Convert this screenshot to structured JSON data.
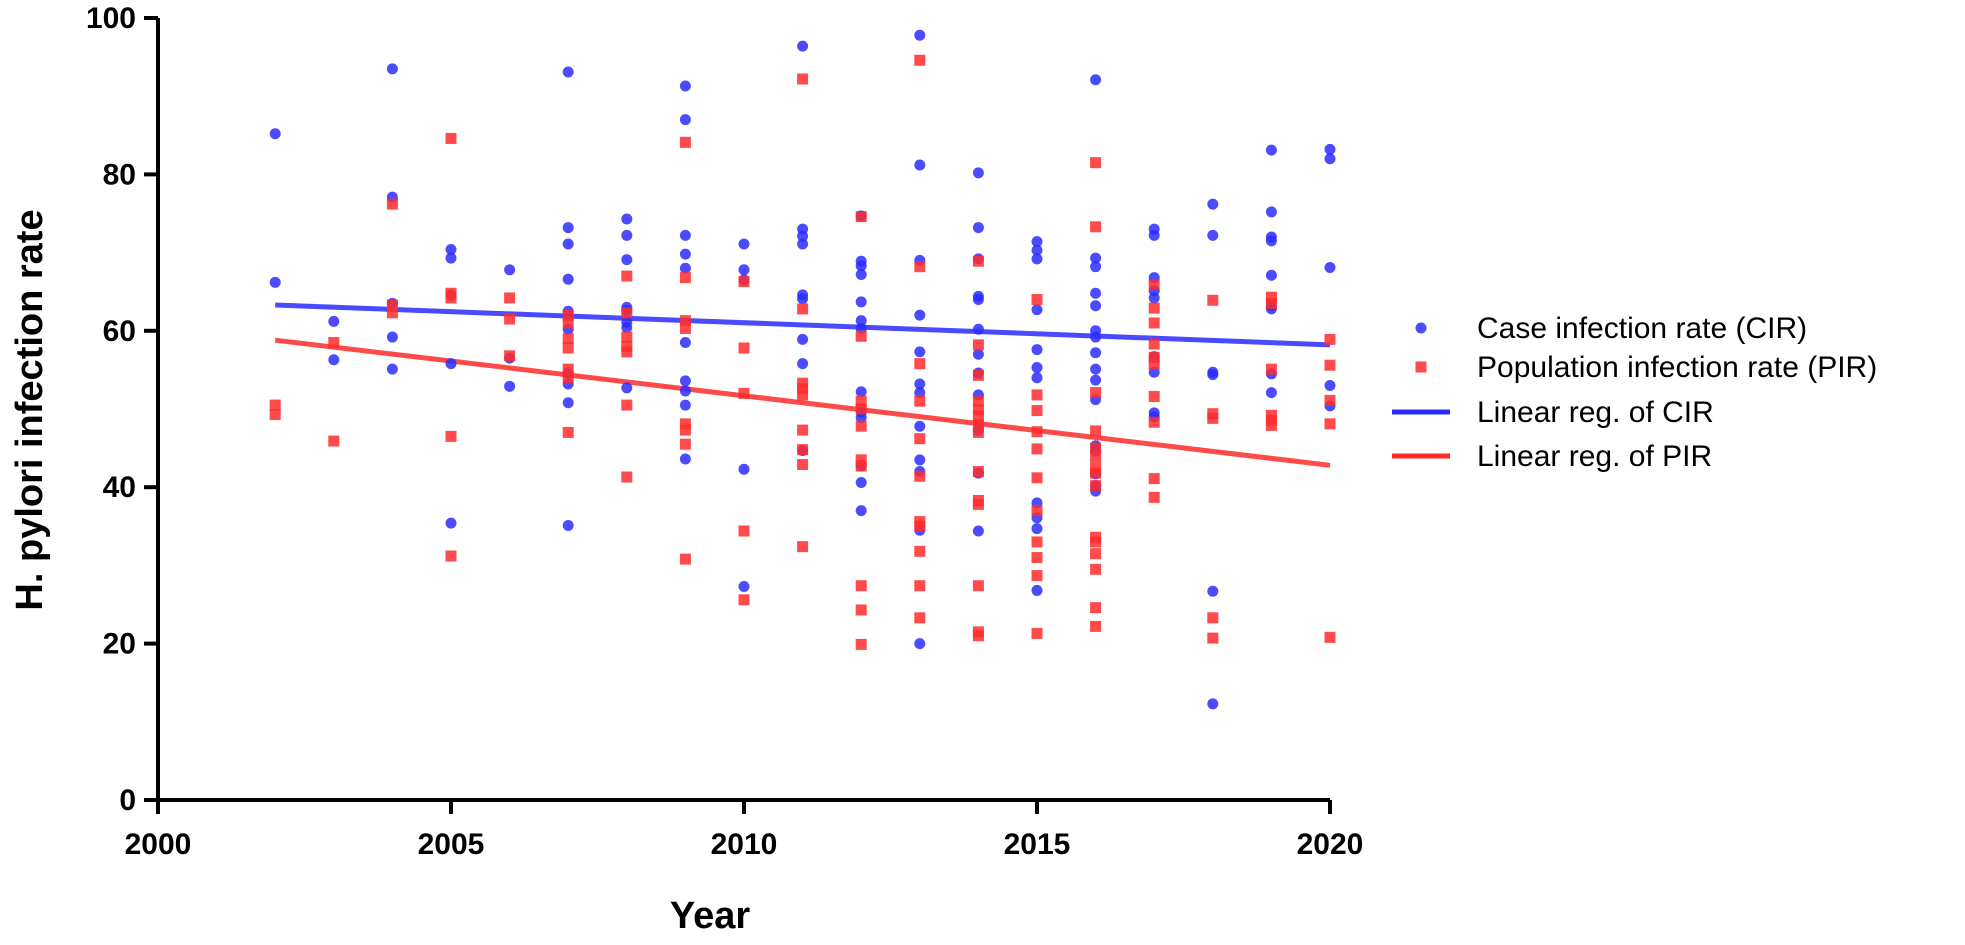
{
  "colors": {
    "cir": "#2b2bff",
    "pir": "#ff2b2b"
  },
  "chart_data": {
    "type": "scatter",
    "title": "",
    "xlabel": "Year",
    "ylabel": "H. pylori infection rate",
    "xlim": [
      2000,
      2020
    ],
    "ylim": [
      0,
      100
    ],
    "xticks": [
      "2000",
      "2005",
      "2010",
      "2015",
      "2020"
    ],
    "yticks": [
      "0",
      "20",
      "40",
      "60",
      "80",
      "100"
    ],
    "grid": false,
    "legend_position": "right",
    "legend": [
      {
        "label": "Case infection rate (CIR)",
        "marker": "circle",
        "color": "#2b2bff"
      },
      {
        "label": "Population infection rate (PIR)",
        "marker": "square",
        "color": "#ff2b2b"
      },
      {
        "label": "Linear reg. of CIR",
        "marker": "line",
        "color": "#2b2bff"
      },
      {
        "label": "Linear reg. of PIR",
        "marker": "line",
        "color": "#ff2b2b"
      }
    ],
    "series": [
      {
        "name": "Case infection rate (CIR)",
        "marker": "circle",
        "points": [
          [
            2002,
            85.2
          ],
          [
            2002,
            66.2
          ],
          [
            2003,
            61.2
          ],
          [
            2003,
            56.3
          ],
          [
            2004,
            93.5
          ],
          [
            2004,
            77.1
          ],
          [
            2004,
            63.5
          ],
          [
            2004,
            59.2
          ],
          [
            2004,
            55.1
          ],
          [
            2005,
            70.4
          ],
          [
            2005,
            69.3
          ],
          [
            2005,
            64.6
          ],
          [
            2005,
            55.8
          ],
          [
            2005,
            35.4
          ],
          [
            2006,
            67.8
          ],
          [
            2006,
            56.5
          ],
          [
            2006,
            52.9
          ],
          [
            2007,
            93.1
          ],
          [
            2007,
            73.2
          ],
          [
            2007,
            71.1
          ],
          [
            2007,
            66.6
          ],
          [
            2007,
            62.5
          ],
          [
            2007,
            60.2
          ],
          [
            2007,
            54.6
          ],
          [
            2007,
            53.2
          ],
          [
            2007,
            50.8
          ],
          [
            2007,
            35.1
          ],
          [
            2008,
            74.3
          ],
          [
            2008,
            72.2
          ],
          [
            2008,
            69.1
          ],
          [
            2008,
            63.0
          ],
          [
            2008,
            62.6
          ],
          [
            2008,
            61.1
          ],
          [
            2008,
            60.4
          ],
          [
            2008,
            52.7
          ],
          [
            2009,
            91.3
          ],
          [
            2009,
            87.0
          ],
          [
            2009,
            72.2
          ],
          [
            2009,
            69.8
          ],
          [
            2009,
            68.0
          ],
          [
            2009,
            58.5
          ],
          [
            2009,
            53.6
          ],
          [
            2009,
            52.3
          ],
          [
            2009,
            50.5
          ],
          [
            2009,
            43.6
          ],
          [
            2010,
            71.1
          ],
          [
            2010,
            67.8
          ],
          [
            2010,
            66.5
          ],
          [
            2010,
            42.3
          ],
          [
            2010,
            27.3
          ],
          [
            2011,
            96.4
          ],
          [
            2011,
            73.0
          ],
          [
            2011,
            72.1
          ],
          [
            2011,
            71.1
          ],
          [
            2011,
            64.6
          ],
          [
            2011,
            64.1
          ],
          [
            2011,
            58.9
          ],
          [
            2011,
            55.8
          ],
          [
            2011,
            44.7
          ],
          [
            2012,
            74.7
          ],
          [
            2012,
            68.9
          ],
          [
            2012,
            68.3
          ],
          [
            2012,
            67.2
          ],
          [
            2012,
            63.7
          ],
          [
            2012,
            61.3
          ],
          [
            2012,
            60.3
          ],
          [
            2012,
            52.2
          ],
          [
            2012,
            49.6
          ],
          [
            2012,
            48.9
          ],
          [
            2012,
            42.8
          ],
          [
            2012,
            40.6
          ],
          [
            2012,
            37.0
          ],
          [
            2013,
            97.8
          ],
          [
            2013,
            81.2
          ],
          [
            2013,
            69.0
          ],
          [
            2013,
            62.0
          ],
          [
            2013,
            57.3
          ],
          [
            2013,
            53.2
          ],
          [
            2013,
            52.1
          ],
          [
            2013,
            47.8
          ],
          [
            2013,
            43.5
          ],
          [
            2013,
            42.0
          ],
          [
            2013,
            34.5
          ],
          [
            2013,
            20.0
          ],
          [
            2014,
            80.2
          ],
          [
            2014,
            73.2
          ],
          [
            2014,
            69.2
          ],
          [
            2014,
            64.4
          ],
          [
            2014,
            64.0
          ],
          [
            2014,
            60.2
          ],
          [
            2014,
            57.0
          ],
          [
            2014,
            54.6
          ],
          [
            2014,
            51.8
          ],
          [
            2014,
            47.3
          ],
          [
            2014,
            41.8
          ],
          [
            2014,
            34.4
          ],
          [
            2015,
            71.4
          ],
          [
            2015,
            70.3
          ],
          [
            2015,
            69.2
          ],
          [
            2015,
            62.7
          ],
          [
            2015,
            57.6
          ],
          [
            2015,
            55.3
          ],
          [
            2015,
            54.0
          ],
          [
            2015,
            38.0
          ],
          [
            2015,
            36.1
          ],
          [
            2015,
            34.7
          ],
          [
            2015,
            26.8
          ],
          [
            2016,
            92.1
          ],
          [
            2016,
            69.3
          ],
          [
            2016,
            68.2
          ],
          [
            2016,
            64.8
          ],
          [
            2016,
            63.2
          ],
          [
            2016,
            60.0
          ],
          [
            2016,
            59.2
          ],
          [
            2016,
            57.2
          ],
          [
            2016,
            55.1
          ],
          [
            2016,
            53.7
          ],
          [
            2016,
            51.2
          ],
          [
            2016,
            45.3
          ],
          [
            2016,
            44.6
          ],
          [
            2016,
            41.7
          ],
          [
            2016,
            40.2
          ],
          [
            2016,
            39.5
          ],
          [
            2017,
            73.0
          ],
          [
            2017,
            72.2
          ],
          [
            2017,
            66.8
          ],
          [
            2017,
            65.1
          ],
          [
            2017,
            64.2
          ],
          [
            2017,
            56.7
          ],
          [
            2017,
            54.7
          ],
          [
            2017,
            49.5
          ],
          [
            2017,
            49.0
          ],
          [
            2018,
            76.2
          ],
          [
            2018,
            72.2
          ],
          [
            2018,
            54.7
          ],
          [
            2018,
            54.4
          ],
          [
            2018,
            26.7
          ],
          [
            2018,
            12.3
          ],
          [
            2019,
            83.1
          ],
          [
            2019,
            75.2
          ],
          [
            2019,
            72.0
          ],
          [
            2019,
            71.5
          ],
          [
            2019,
            67.1
          ],
          [
            2019,
            63.2
          ],
          [
            2019,
            62.8
          ],
          [
            2019,
            54.5
          ],
          [
            2019,
            52.1
          ],
          [
            2020,
            83.2
          ],
          [
            2020,
            82.0
          ],
          [
            2020,
            68.1
          ],
          [
            2020,
            53.0
          ],
          [
            2020,
            50.4
          ]
        ]
      },
      {
        "name": "Population infection rate (PIR)",
        "marker": "square",
        "points": [
          [
            2002,
            50.5
          ],
          [
            2002,
            49.3
          ],
          [
            2003,
            58.5
          ],
          [
            2003,
            45.9
          ],
          [
            2004,
            76.2
          ],
          [
            2004,
            63.3
          ],
          [
            2004,
            62.3
          ],
          [
            2005,
            84.6
          ],
          [
            2005,
            64.8
          ],
          [
            2005,
            64.2
          ],
          [
            2005,
            46.5
          ],
          [
            2005,
            31.2
          ],
          [
            2006,
            64.2
          ],
          [
            2006,
            61.5
          ],
          [
            2006,
            56.8
          ],
          [
            2007,
            62.0
          ],
          [
            2007,
            61.0
          ],
          [
            2007,
            59.0
          ],
          [
            2007,
            57.8
          ],
          [
            2007,
            55.1
          ],
          [
            2007,
            54.0
          ],
          [
            2007,
            47.0
          ],
          [
            2008,
            67.0
          ],
          [
            2008,
            62.3
          ],
          [
            2008,
            59.2
          ],
          [
            2008,
            58.0
          ],
          [
            2008,
            57.3
          ],
          [
            2008,
            50.5
          ],
          [
            2008,
            41.3
          ],
          [
            2009,
            84.1
          ],
          [
            2009,
            66.8
          ],
          [
            2009,
            61.3
          ],
          [
            2009,
            60.3
          ],
          [
            2009,
            48.1
          ],
          [
            2009,
            47.3
          ],
          [
            2009,
            45.5
          ],
          [
            2009,
            30.8
          ],
          [
            2010,
            66.3
          ],
          [
            2010,
            57.8
          ],
          [
            2010,
            52.0
          ],
          [
            2010,
            34.4
          ],
          [
            2010,
            25.6
          ],
          [
            2011,
            92.2
          ],
          [
            2011,
            62.8
          ],
          [
            2011,
            53.3
          ],
          [
            2011,
            52.6
          ],
          [
            2011,
            51.8
          ],
          [
            2011,
            47.3
          ],
          [
            2011,
            44.8
          ],
          [
            2011,
            42.9
          ],
          [
            2011,
            32.4
          ],
          [
            2012,
            74.6
          ],
          [
            2012,
            59.3
          ],
          [
            2012,
            51.0
          ],
          [
            2012,
            50.0
          ],
          [
            2012,
            47.8
          ],
          [
            2012,
            43.5
          ],
          [
            2012,
            42.7
          ],
          [
            2012,
            27.4
          ],
          [
            2012,
            24.3
          ],
          [
            2012,
            19.9
          ],
          [
            2013,
            94.6
          ],
          [
            2013,
            68.2
          ],
          [
            2013,
            55.8
          ],
          [
            2013,
            51.0
          ],
          [
            2013,
            46.2
          ],
          [
            2013,
            41.4
          ],
          [
            2013,
            35.6
          ],
          [
            2013,
            35.0
          ],
          [
            2013,
            31.8
          ],
          [
            2013,
            27.4
          ],
          [
            2013,
            23.3
          ],
          [
            2014,
            68.9
          ],
          [
            2014,
            58.2
          ],
          [
            2014,
            54.3
          ],
          [
            2014,
            51.0
          ],
          [
            2014,
            49.9
          ],
          [
            2014,
            49.1
          ],
          [
            2014,
            48.0
          ],
          [
            2014,
            47.0
          ],
          [
            2014,
            42.0
          ],
          [
            2014,
            38.3
          ],
          [
            2014,
            37.8
          ],
          [
            2014,
            27.4
          ],
          [
            2014,
            21.5
          ],
          [
            2014,
            21.0
          ],
          [
            2015,
            64.0
          ],
          [
            2015,
            51.8
          ],
          [
            2015,
            49.8
          ],
          [
            2015,
            47.1
          ],
          [
            2015,
            44.9
          ],
          [
            2015,
            41.2
          ],
          [
            2015,
            37.0
          ],
          [
            2015,
            33.0
          ],
          [
            2015,
            31.0
          ],
          [
            2015,
            28.7
          ],
          [
            2015,
            21.3
          ],
          [
            2016,
            81.5
          ],
          [
            2016,
            73.3
          ],
          [
            2016,
            52.1
          ],
          [
            2016,
            47.2
          ],
          [
            2016,
            45.0
          ],
          [
            2016,
            43.9
          ],
          [
            2016,
            42.5
          ],
          [
            2016,
            41.8
          ],
          [
            2016,
            40.2
          ],
          [
            2016,
            33.6
          ],
          [
            2016,
            33.0
          ],
          [
            2016,
            31.5
          ],
          [
            2016,
            29.5
          ],
          [
            2016,
            24.6
          ],
          [
            2016,
            22.2
          ],
          [
            2017,
            65.9
          ],
          [
            2017,
            62.9
          ],
          [
            2017,
            61.0
          ],
          [
            2017,
            58.3
          ],
          [
            2017,
            56.6
          ],
          [
            2017,
            55.7
          ],
          [
            2017,
            51.6
          ],
          [
            2017,
            48.3
          ],
          [
            2017,
            41.1
          ],
          [
            2017,
            38.7
          ],
          [
            2018,
            63.9
          ],
          [
            2018,
            49.4
          ],
          [
            2018,
            48.8
          ],
          [
            2018,
            23.3
          ],
          [
            2018,
            20.7
          ],
          [
            2019,
            64.3
          ],
          [
            2019,
            63.5
          ],
          [
            2019,
            55.1
          ],
          [
            2019,
            49.2
          ],
          [
            2019,
            48.6
          ],
          [
            2019,
            47.9
          ],
          [
            2020,
            58.9
          ],
          [
            2020,
            55.6
          ],
          [
            2020,
            51.1
          ],
          [
            2020,
            48.1
          ],
          [
            2020,
            20.8
          ]
        ]
      }
    ],
    "regression": [
      {
        "name": "Linear reg. of CIR",
        "x": [
          2002,
          2020
        ],
        "y": [
          63.3,
          58.2
        ]
      },
      {
        "name": "Linear reg. of PIR",
        "x": [
          2002,
          2020
        ],
        "y": [
          58.8,
          42.8
        ]
      }
    ]
  }
}
